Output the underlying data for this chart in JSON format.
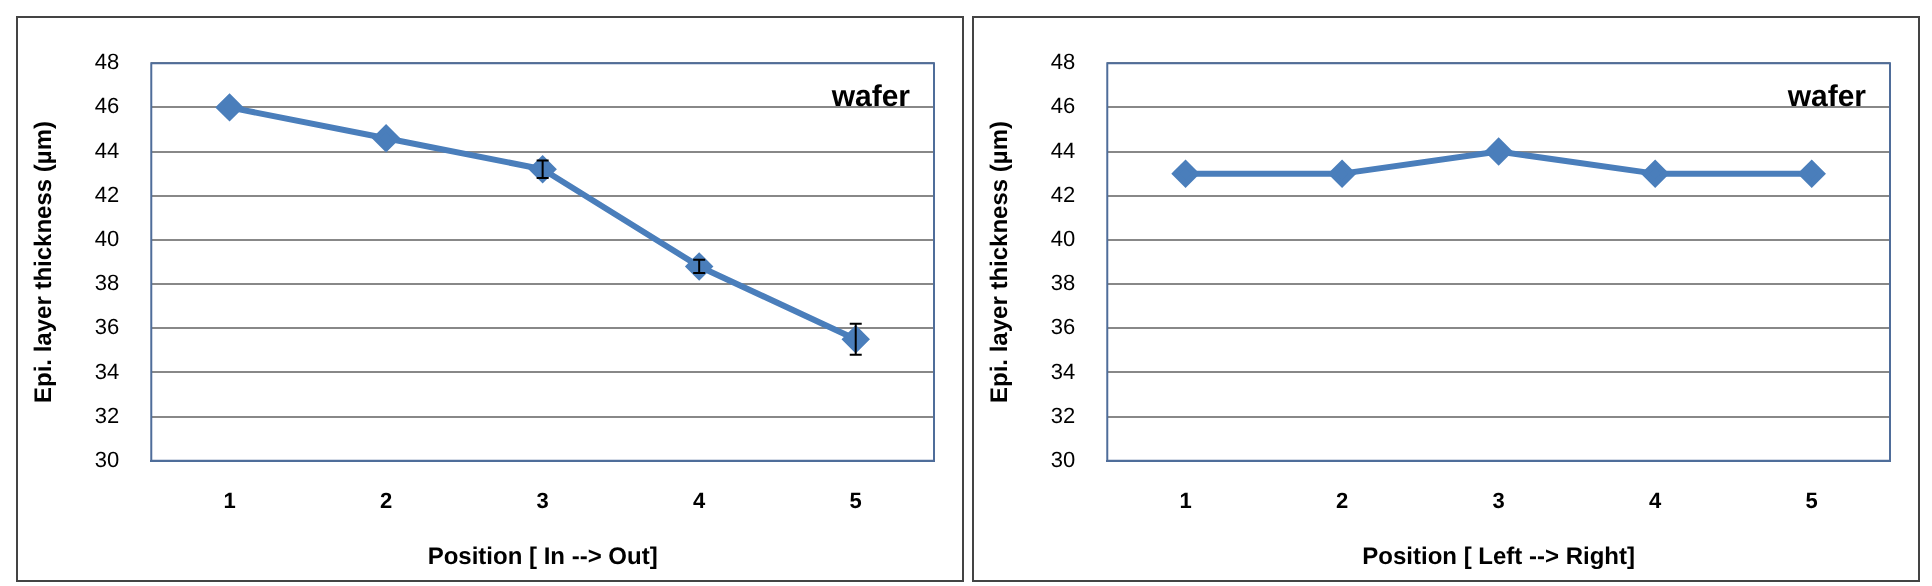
{
  "chart_data": [
    {
      "type": "line",
      "xlabel": "Position [ In --> Out]",
      "ylabel": "Epi. layer thickness (µm)",
      "annotations": [
        "wafer"
      ],
      "categories": [
        "1",
        "2",
        "3",
        "4",
        "5"
      ],
      "series": [
        {
          "color": "#4a7ebb",
          "values": [
            46,
            44.6,
            43.2,
            38.8,
            35.5
          ],
          "errors": [
            null,
            null,
            0.4,
            0.3,
            0.7
          ]
        }
      ],
      "ylim": [
        30,
        48
      ],
      "yticks": [
        30,
        32,
        34,
        36,
        38,
        40,
        42,
        44,
        46,
        48
      ],
      "grid": "y",
      "legend": false,
      "marker": "diamond",
      "line_style": "solid"
    },
    {
      "type": "line",
      "xlabel": "Position [ Left --> Right]",
      "ylabel": "Epi. layer thickness (µm)",
      "annotations": [
        "wafer"
      ],
      "categories": [
        "1",
        "2",
        "3",
        "4",
        "5"
      ],
      "series": [
        {
          "color": "#4a7ebb",
          "values": [
            43,
            43,
            44,
            43,
            43
          ]
        }
      ],
      "ylim": [
        30,
        48
      ],
      "yticks": [
        30,
        32,
        34,
        36,
        38,
        40,
        42,
        44,
        46,
        48
      ],
      "grid": "y",
      "legend": false,
      "marker": "diamond",
      "line_style": "solid"
    }
  ]
}
